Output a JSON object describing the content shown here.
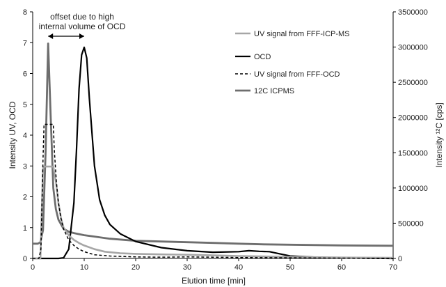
{
  "chart_data": {
    "type": "line",
    "xlabel": "Elution time [min]",
    "ylabel_left": "Intensity UV, OCD",
    "ylabel_right": "Intensity ¹²C [cps]",
    "xlim": [
      0,
      70
    ],
    "ylim_left": [
      0,
      8
    ],
    "ylim_right": [
      0,
      3500000
    ],
    "x_ticks": [
      0,
      10,
      20,
      30,
      40,
      50,
      60,
      70
    ],
    "y_left_ticks": [
      0,
      1,
      2,
      3,
      4,
      5,
      6,
      7,
      8
    ],
    "y_right_ticks": [
      0,
      500000,
      1000000,
      1500000,
      2000000,
      2500000,
      3000000,
      3500000
    ],
    "grid": false,
    "legend_position": "top-right",
    "annotation": {
      "line1": "offset due to high",
      "line2": "internal volume of OCD",
      "arrow_from_x": 3,
      "arrow_to_x": 10
    },
    "series": [
      {
        "name": "UV signal from FFF-ICP-MS",
        "axis": "left",
        "color": "#a6a6a6",
        "style": "solid",
        "x": [
          0,
          1.5,
          2,
          2.2,
          4,
          4.5,
          5,
          5.5,
          6,
          7,
          8,
          9,
          10,
          12,
          14,
          17,
          20,
          25,
          30,
          35,
          40,
          50,
          60,
          70
        ],
        "y": [
          0,
          0,
          2.9,
          2.98,
          2.98,
          2.5,
          1.8,
          1.3,
          1.0,
          0.75,
          0.6,
          0.5,
          0.42,
          0.3,
          0.22,
          0.17,
          0.15,
          0.13,
          0.12,
          0.1,
          0.08,
          0.05,
          0.03,
          0.02
        ]
      },
      {
        "name": "OCD",
        "axis": "left",
        "color": "#000000",
        "style": "solid",
        "x": [
          0,
          5,
          6,
          7,
          8,
          8.5,
          9,
          9.5,
          10,
          10.5,
          11,
          12,
          13,
          14,
          15,
          17,
          20,
          25,
          30,
          35,
          40,
          42,
          44,
          46,
          48,
          50,
          55,
          60,
          65,
          70
        ],
        "y": [
          0,
          0,
          0.02,
          0.3,
          1.8,
          3.5,
          5.5,
          6.6,
          6.85,
          6.5,
          5.2,
          3.0,
          1.9,
          1.4,
          1.1,
          0.8,
          0.55,
          0.35,
          0.25,
          0.2,
          0.22,
          0.25,
          0.23,
          0.22,
          0.15,
          0.08,
          0.04,
          0.02,
          0.01,
          0
        ]
      },
      {
        "name": "UV signal from FFF-OCD",
        "axis": "left",
        "color": "#000000",
        "style": "dashed",
        "x": [
          0,
          1.2,
          1.6,
          2,
          2.2,
          4,
          4.2,
          4.6,
          5,
          5.5,
          6,
          7,
          8,
          9,
          10,
          12,
          15,
          20,
          25,
          30,
          35,
          40,
          50,
          60,
          70
        ],
        "y": [
          0,
          0,
          0.3,
          3.2,
          4.35,
          4.35,
          3.5,
          2.5,
          1.8,
          1.3,
          0.95,
          0.6,
          0.42,
          0.3,
          0.22,
          0.12,
          0.08,
          0.05,
          0.04,
          0.05,
          0.04,
          0.03,
          0.02,
          0.01,
          0
        ]
      },
      {
        "name": "12C ICPMS",
        "axis": "right",
        "color": "#6e6e6e",
        "style": "solid",
        "x": [
          0,
          1,
          1.5,
          2,
          2.5,
          3,
          3.5,
          4,
          4.5,
          5,
          6,
          7,
          8,
          10,
          12,
          15,
          20,
          25,
          30,
          35,
          40,
          45,
          50,
          60,
          70
        ],
        "y": [
          210000,
          210000,
          230000,
          400000,
          1500000,
          3050000,
          2000000,
          1000000,
          700000,
          550000,
          420000,
          380000,
          360000,
          330000,
          310000,
          280000,
          250000,
          240000,
          230000,
          220000,
          210000,
          200000,
          195000,
          185000,
          180000
        ]
      }
    ]
  }
}
